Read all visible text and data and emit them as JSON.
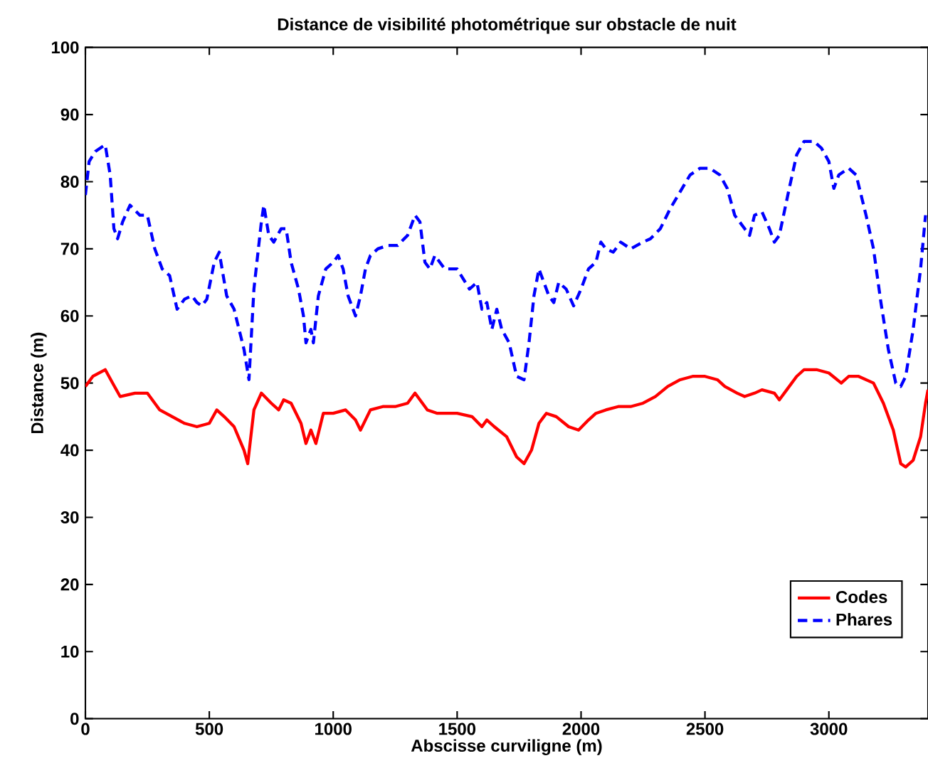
{
  "chart_data": {
    "type": "line",
    "title": "Distance de visibilité photométrique sur obstacle de nuit",
    "xlabel": "Abscisse curviligne (m)",
    "ylabel": "Distance (m)",
    "xlim": [
      0,
      3400
    ],
    "ylim": [
      0,
      100
    ],
    "xticks": [
      0,
      500,
      1000,
      1500,
      2000,
      2500,
      3000
    ],
    "yticks": [
      0,
      10,
      20,
      30,
      40,
      50,
      60,
      70,
      80,
      90,
      100
    ],
    "legend": "bottom right",
    "grid": false,
    "series": [
      {
        "name": "Codes",
        "color": "#ff0000",
        "line_style": "solid",
        "x": [
          0,
          30,
          80,
          110,
          140,
          200,
          250,
          300,
          350,
          400,
          450,
          500,
          530,
          560,
          600,
          640,
          655,
          680,
          710,
          750,
          780,
          800,
          830,
          870,
          890,
          910,
          930,
          960,
          1000,
          1050,
          1090,
          1110,
          1150,
          1200,
          1250,
          1300,
          1330,
          1360,
          1380,
          1420,
          1500,
          1560,
          1600,
          1620,
          1650,
          1700,
          1740,
          1770,
          1800,
          1830,
          1860,
          1900,
          1950,
          1990,
          2030,
          2060,
          2100,
          2150,
          2200,
          2250,
          2300,
          2350,
          2400,
          2450,
          2500,
          2550,
          2580,
          2630,
          2660,
          2700,
          2730,
          2780,
          2800,
          2830,
          2870,
          2900,
          2950,
          3000,
          3050,
          3080,
          3120,
          3180,
          3220,
          3260,
          3290,
          3310,
          3340,
          3370,
          3390,
          3400
        ],
        "values": [
          49.5,
          51,
          52,
          50,
          48,
          48.5,
          48.5,
          46,
          45,
          44,
          43.5,
          44,
          46,
          45,
          43.5,
          40,
          38,
          46,
          48.5,
          47,
          46,
          47.5,
          47,
          44,
          41,
          43,
          41,
          45.5,
          45.5,
          46,
          44.5,
          43,
          46,
          46.5,
          46.5,
          47,
          48.5,
          47,
          46,
          45.5,
          45.5,
          45,
          43.5,
          44.5,
          43.5,
          42,
          39,
          38,
          40,
          44,
          45.5,
          45,
          43.5,
          43,
          44.5,
          45.5,
          46,
          46.5,
          46.5,
          47,
          48,
          49.5,
          50.5,
          51,
          51,
          50.5,
          49.5,
          48.5,
          48,
          48.5,
          49,
          48.5,
          47.5,
          49,
          51,
          52,
          52,
          51.5,
          50,
          51,
          51,
          50,
          47,
          43,
          38,
          37.5,
          38.5,
          42,
          47,
          49
        ]
      },
      {
        "name": "Phares",
        "color": "#0000ff",
        "line_style": "dashed",
        "x": [
          0,
          15,
          40,
          80,
          100,
          115,
          130,
          150,
          180,
          220,
          250,
          280,
          310,
          340,
          370,
          400,
          430,
          450,
          470,
          490,
          520,
          540,
          570,
          600,
          620,
          640,
          660,
          680,
          710,
          720,
          740,
          760,
          790,
          810,
          830,
          860,
          880,
          890,
          910,
          920,
          940,
          970,
          1000,
          1020,
          1040,
          1060,
          1090,
          1110,
          1130,
          1150,
          1180,
          1220,
          1260,
          1300,
          1330,
          1350,
          1370,
          1390,
          1410,
          1450,
          1500,
          1550,
          1580,
          1600,
          1620,
          1640,
          1660,
          1680,
          1710,
          1740,
          1770,
          1790,
          1810,
          1830,
          1850,
          1870,
          1890,
          1910,
          1940,
          1970,
          2000,
          2030,
          2060,
          2080,
          2100,
          2130,
          2160,
          2200,
          2250,
          2280,
          2320,
          2360,
          2400,
          2440,
          2480,
          2520,
          2560,
          2590,
          2620,
          2660,
          2680,
          2700,
          2730,
          2760,
          2780,
          2800,
          2840,
          2870,
          2900,
          2940,
          2970,
          3000,
          3020,
          3040,
          3080,
          3110,
          3150,
          3180,
          3210,
          3240,
          3270,
          3290,
          3310,
          3340,
          3370,
          3390
        ],
        "values": [
          78,
          83,
          84.5,
          85.5,
          81,
          73,
          71.5,
          74,
          76.5,
          75,
          75,
          70,
          67,
          66,
          61,
          62.5,
          63,
          62,
          61.5,
          62.5,
          68,
          69.5,
          63,
          61,
          58,
          55,
          50.5,
          64,
          74,
          76.5,
          72,
          71,
          73,
          73,
          68,
          64,
          60,
          56,
          58,
          56,
          63,
          67,
          68,
          69,
          67,
          63,
          60,
          63,
          67,
          69,
          70,
          70.5,
          70.5,
          72,
          75,
          74,
          68,
          67,
          69,
          67,
          67,
          64,
          65,
          61,
          62,
          58,
          61,
          58,
          56,
          51,
          50.5,
          56,
          63,
          67,
          65,
          63,
          62,
          65,
          64,
          61.5,
          64,
          67,
          68,
          71,
          70,
          69.5,
          71,
          70,
          71,
          71.5,
          73,
          76,
          78.5,
          81,
          82,
          82,
          81,
          79,
          75,
          73,
          72,
          75,
          75.5,
          73,
          71,
          72,
          79,
          84,
          86,
          86,
          85,
          83,
          79,
          81,
          82,
          81,
          75,
          70,
          62,
          55,
          50,
          49.5,
          51,
          58,
          67,
          75
        ]
      }
    ]
  }
}
